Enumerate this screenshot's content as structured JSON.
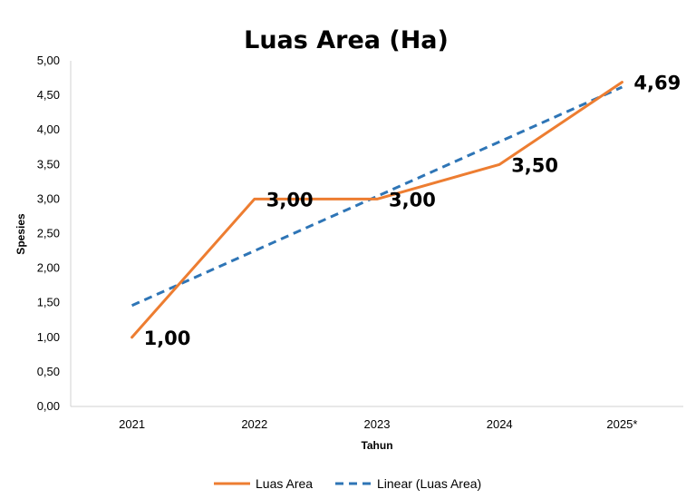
{
  "chart_data": {
    "type": "line",
    "title": "Luas Area (Ha)",
    "xlabel": "Tahun",
    "ylabel": "Spesies",
    "categories": [
      "2021",
      "2022",
      "2023",
      "2024",
      "2025*"
    ],
    "series": [
      {
        "name": "Luas Area",
        "values": [
          1.0,
          3.0,
          3.0,
          3.5,
          4.69
        ],
        "data_labels": [
          "1,00",
          "3,00",
          "3,00",
          "3,50",
          "4,69"
        ],
        "color": "#ED7D31",
        "style": "solid"
      },
      {
        "name": "Linear (Luas Area)",
        "values": [
          1.46,
          2.25,
          3.04,
          3.83,
          4.62
        ],
        "color": "#2E75B6",
        "style": "dashed"
      }
    ],
    "ylim": [
      0,
      5
    ],
    "yticks": [
      "0,00",
      "0,50",
      "1,00",
      "1,50",
      "2,00",
      "2,50",
      "3,00",
      "3,50",
      "4,00",
      "4,50",
      "5,00"
    ],
    "grid": false,
    "legend_position": "bottom"
  }
}
